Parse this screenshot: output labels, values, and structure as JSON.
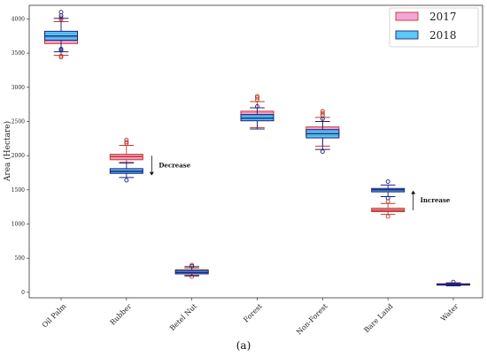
{
  "caption": "(a)",
  "chart_data": {
    "type": "box",
    "title": "",
    "ylabel": "Area (Hectare)",
    "xlabel": "",
    "ylim": [
      -80,
      4200
    ],
    "yticks": [
      0,
      500,
      1000,
      1500,
      2000,
      2500,
      3000,
      3500,
      4000
    ],
    "categories": [
      "Oil Palm",
      "Rubber",
      "Betel Nut",
      "Forest",
      "Non-Forest",
      "Bare Land",
      "Water"
    ],
    "legend_position": "top-right",
    "grid": false,
    "series": [
      {
        "name": "2017",
        "fill": "#f4a6d9",
        "line": "#c0392b",
        "boxes": [
          {
            "whislo": 3470,
            "q1": 3640,
            "med": 3700,
            "q3": 3780,
            "whishi": 3960,
            "fliers": [
              3440,
              3460,
              3990,
              4020
            ]
          },
          {
            "whislo": 1890,
            "q1": 1940,
            "med": 1985,
            "q3": 2020,
            "whishi": 2150,
            "fliers": [
              2180,
              2200,
              2230
            ]
          },
          {
            "whislo": 250,
            "q1": 280,
            "med": 300,
            "q3": 330,
            "whishi": 380,
            "fliers": [
              230,
              400
            ]
          },
          {
            "whislo": 2410,
            "q1": 2560,
            "med": 2600,
            "q3": 2650,
            "whishi": 2790,
            "fliers": [
              2820,
              2850,
              2870
            ]
          },
          {
            "whislo": 2140,
            "q1": 2290,
            "med": 2360,
            "q3": 2420,
            "whishi": 2560,
            "fliers": [
              2590,
              2620,
              2650
            ]
          },
          {
            "whislo": 1140,
            "q1": 1180,
            "med": 1200,
            "q3": 1230,
            "whishi": 1300,
            "fliers": [
              1110,
              1330
            ]
          },
          {
            "whislo": 100,
            "q1": 110,
            "med": 120,
            "q3": 125,
            "whishi": 140,
            "fliers": []
          }
        ]
      },
      {
        "name": "2018",
        "fill": "#5bc8f5",
        "line": "#1a237e",
        "boxes": [
          {
            "whislo": 3520,
            "q1": 3690,
            "med": 3750,
            "q3": 3820,
            "whishi": 4010,
            "fliers": [
              3540,
              3560,
              4050,
              4100
            ]
          },
          {
            "whislo": 1680,
            "q1": 1740,
            "med": 1770,
            "q3": 1810,
            "whishi": 1900,
            "fliers": [
              1640
            ]
          },
          {
            "whislo": 240,
            "q1": 270,
            "med": 290,
            "q3": 320,
            "whishi": 360,
            "fliers": [
              380
            ]
          },
          {
            "whislo": 2390,
            "q1": 2510,
            "med": 2550,
            "q3": 2600,
            "whishi": 2700,
            "fliers": [
              2720
            ]
          },
          {
            "whislo": 2090,
            "q1": 2260,
            "med": 2320,
            "q3": 2380,
            "whishi": 2500,
            "fliers": [
              2060,
              2540
            ]
          },
          {
            "whislo": 1400,
            "q1": 1470,
            "med": 1500,
            "q3": 1520,
            "whishi": 1570,
            "fliers": [
              1380,
              1620
            ]
          },
          {
            "whislo": 95,
            "q1": 105,
            "med": 115,
            "q3": 122,
            "whishi": 135,
            "fliers": [
              150
            ]
          }
        ]
      }
    ],
    "annotations": [
      {
        "text": "Decrease",
        "category": "Rubber",
        "direction": "down",
        "arrow_from": 2000,
        "arrow_to": 1710
      },
      {
        "text": "Increase",
        "category": "Bare Land",
        "direction": "up",
        "arrow_from": 1200,
        "arrow_to": 1490
      }
    ]
  }
}
